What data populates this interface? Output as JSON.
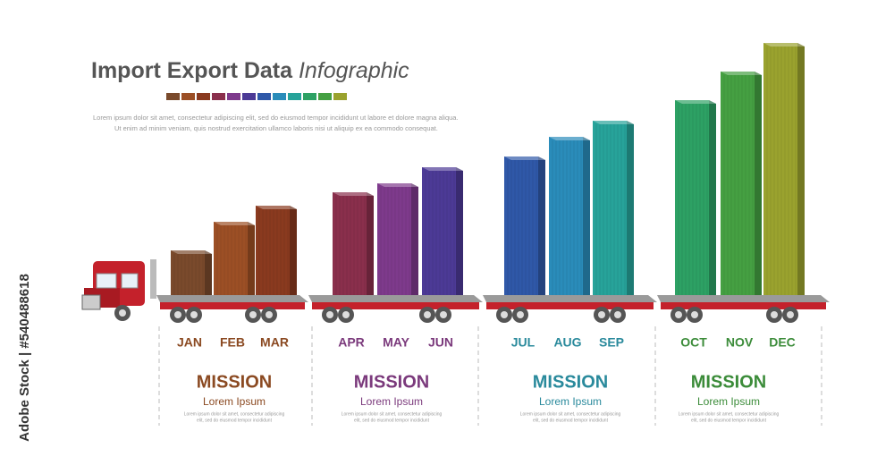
{
  "chart_data": {
    "type": "bar",
    "title": "Import Export Data",
    "title_emphasis": "Infographic",
    "intro": [
      "Lorem ipsum dolor sit amet, consectetur adipiscing elit, sed do eiusmod tempor incididunt  ut labore et dolore magna aliqua.",
      "Ut enim ad minim veniam, quis nostrud exercitation ullamco laboris nisi ut aliquip ex ea commodo consequat."
    ],
    "categories": [
      "JAN",
      "FEB",
      "MAR",
      "APR",
      "MAY",
      "JUN",
      "JUL",
      "AUG",
      "SEP",
      "OCT",
      "NOV",
      "DEC"
    ],
    "values": [
      50,
      82,
      100,
      115,
      125,
      143,
      155,
      177,
      195,
      218,
      250,
      282
    ],
    "colors": [
      "#7a4a2c",
      "#9c4f25",
      "#8a3a1f",
      "#8a2f4c",
      "#7e3a8c",
      "#4c3a96",
      "#2f58a8",
      "#2a8cba",
      "#27a39a",
      "#2da164",
      "#45a042",
      "#9aa22e"
    ]
  },
  "panels": [
    {
      "title": "MISSION",
      "subtitle": "Lorem Ipsum",
      "color": "#8b4a22",
      "text": [
        "Lorem ipsum dolor sit amet, consectetur adipiscing",
        "elit, sed do eiusmod tempor incididunt"
      ]
    },
    {
      "title": "MISSION",
      "subtitle": "Lorem Ipsum",
      "color": "#7b3a7c",
      "text": [
        "Lorem ipsum dolor sit amet, consectetur adipiscing",
        "elit, sed do eiusmod tempor incididunt"
      ]
    },
    {
      "title": "MISSION",
      "subtitle": "Lorem Ipsum",
      "color": "#2a8a9c",
      "text": [
        "Lorem ipsum dolor sit amet, consectetur adipiscing",
        "elit, sed do eiusmod tempor incididunt"
      ]
    },
    {
      "title": "MISSION",
      "subtitle": "Lorem Ipsum",
      "color": "#3c8c3a",
      "text": [
        "Lorem ipsum dolor sit amet, consectetur adipiscing",
        "elit, sed do eiusmod tempor incididunt"
      ]
    }
  ],
  "side_label": "Adobe Stock | #540488618"
}
